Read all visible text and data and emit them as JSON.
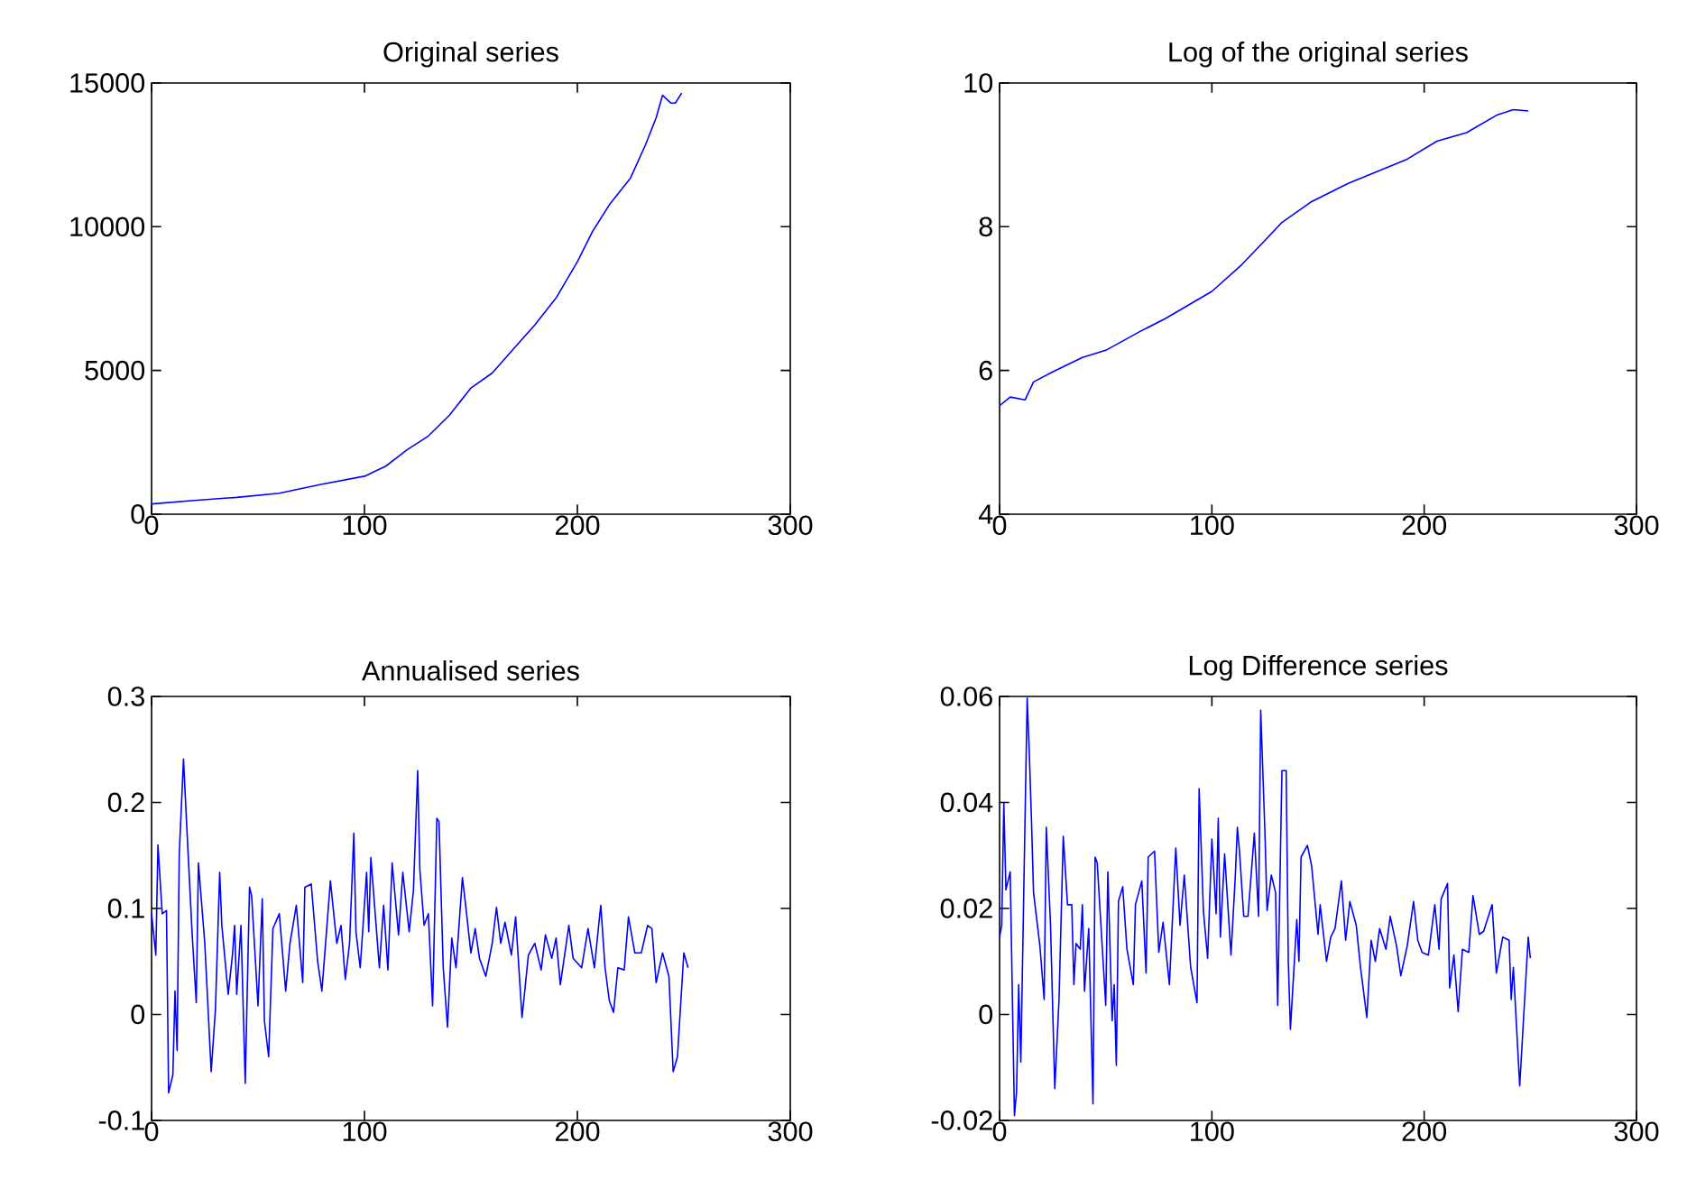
{
  "chart_data": [
    {
      "type": "line",
      "title": "Original series",
      "color": "#0000ff",
      "xlim": [
        0,
        300
      ],
      "xticks": [
        0,
        100,
        200,
        300
      ],
      "ylim": [
        0,
        15000
      ],
      "yticks": [
        0,
        5000,
        10000,
        15000
      ],
      "x": [
        0,
        20,
        40,
        60,
        80,
        100,
        110,
        120,
        130,
        140,
        150,
        160,
        170,
        180,
        190,
        200,
        207,
        215,
        225,
        232,
        237,
        240,
        244,
        246,
        249
      ],
      "values": [
        355,
        480,
        585,
        730,
        1045,
        1320,
        1670,
        2240,
        2720,
        3450,
        4390,
        4910,
        5750,
        6580,
        7520,
        8780,
        9820,
        10760,
        11700,
        12850,
        13790,
        14570,
        14300,
        14300,
        14650
      ]
    },
    {
      "type": "line",
      "title": "Log of the original series",
      "color": "#0000ff",
      "xlim": [
        0,
        300
      ],
      "xticks": [
        0,
        100,
        200,
        300
      ],
      "ylim": [
        4,
        10
      ],
      "yticks": [
        4,
        6,
        8,
        10
      ],
      "x": [
        0,
        5,
        12,
        16,
        25,
        39,
        50,
        66,
        78,
        100,
        114,
        125,
        133,
        147,
        164,
        178,
        192,
        206,
        220,
        234,
        242,
        249
      ],
      "values": [
        5.51,
        5.63,
        5.59,
        5.84,
        5.98,
        6.18,
        6.28,
        6.54,
        6.72,
        7.1,
        7.47,
        7.81,
        8.06,
        8.35,
        8.6,
        8.77,
        8.94,
        9.19,
        9.31,
        9.55,
        9.63,
        9.61
      ]
    },
    {
      "type": "line",
      "title": "Annualised series",
      "color": "#0000ff",
      "xlim": [
        0,
        300
      ],
      "xticks": [
        0,
        100,
        200,
        300
      ],
      "ylim": [
        -0.1,
        0.3
      ],
      "yticks": [
        -0.1,
        0,
        0.1,
        0.2,
        0.3
      ],
      "x": [
        0,
        2,
        3,
        5,
        7,
        8,
        10,
        11,
        12,
        13,
        15,
        16,
        19,
        21,
        22,
        25,
        28,
        30,
        32,
        33,
        36,
        38,
        39,
        40,
        42,
        44,
        46,
        47,
        50,
        52,
        53,
        55,
        57,
        60,
        63,
        65,
        68,
        71,
        72,
        75,
        78,
        80,
        84,
        87,
        89,
        91,
        93,
        95,
        96,
        98,
        101,
        102,
        103,
        107,
        109,
        111,
        113,
        116,
        118,
        121,
        123,
        125,
        126,
        128,
        130,
        132,
        134,
        135,
        137,
        139,
        141,
        143,
        146,
        147,
        150,
        152,
        154,
        157,
        160,
        162,
        164,
        166,
        169,
        171,
        174,
        177,
        180,
        183,
        185,
        188,
        190,
        192,
        196,
        198,
        202,
        205,
        208,
        210,
        211,
        213,
        215,
        217,
        219,
        222,
        224,
        227,
        230,
        233,
        235,
        237,
        240,
        243,
        245,
        247,
        250,
        252
      ],
      "values": [
        0.095,
        0.056,
        0.16,
        0.095,
        0.098,
        -0.074,
        -0.057,
        0.022,
        -0.034,
        0.151,
        0.241,
        0.199,
        0.078,
        0.011,
        0.143,
        0.067,
        -0.054,
        0.005,
        0.134,
        0.084,
        0.019,
        0.056,
        0.084,
        0.019,
        0.084,
        -0.065,
        0.12,
        0.112,
        0.008,
        0.109,
        -0.006,
        -0.04,
        0.081,
        0.095,
        0.022,
        0.067,
        0.103,
        0.03,
        0.12,
        0.123,
        0.05,
        0.022,
        0.126,
        0.067,
        0.084,
        0.033,
        0.067,
        0.171,
        0.078,
        0.044,
        0.134,
        0.078,
        0.148,
        0.044,
        0.103,
        0.042,
        0.143,
        0.075,
        0.134,
        0.078,
        0.117,
        0.23,
        0.137,
        0.084,
        0.095,
        0.008,
        0.185,
        0.182,
        0.044,
        -0.012,
        0.072,
        0.044,
        0.129,
        0.112,
        0.058,
        0.081,
        0.053,
        0.036,
        0.067,
        0.101,
        0.067,
        0.087,
        0.056,
        0.092,
        -0.003,
        0.056,
        0.067,
        0.042,
        0.075,
        0.053,
        0.072,
        0.028,
        0.084,
        0.053,
        0.044,
        0.081,
        0.044,
        0.084,
        0.103,
        0.044,
        0.013,
        0.002,
        0.044,
        0.042,
        0.092,
        0.058,
        0.058,
        0.084,
        0.081,
        0.03,
        0.058,
        0.036,
        -0.054,
        -0.04,
        0.058,
        0.044
      ]
    },
    {
      "type": "line",
      "title": "Log Difference series",
      "color": "#0000ff",
      "xlim": [
        0,
        300
      ],
      "xticks": [
        0,
        100,
        200,
        300
      ],
      "ylim": [
        -0.02,
        0.06
      ],
      "yticks": [
        -0.02,
        0,
        0.02,
        0.04,
        0.06
      ],
      "x": [
        0,
        1,
        2,
        3,
        5,
        7,
        8,
        9,
        10,
        12,
        13,
        14,
        15,
        16,
        19,
        21,
        22,
        24,
        26,
        28,
        30,
        32,
        34,
        35,
        36,
        38,
        39,
        40,
        42,
        44,
        45,
        46,
        47,
        50,
        51,
        53,
        54,
        55,
        56,
        58,
        60,
        63,
        64,
        67,
        69,
        70,
        73,
        75,
        77,
        80,
        83,
        85,
        87,
        90,
        93,
        94,
        96,
        98,
        100,
        102,
        103,
        104,
        106,
        109,
        111,
        112,
        113,
        115,
        117,
        120,
        122,
        123,
        125,
        126,
        128,
        130,
        131,
        133,
        135,
        136,
        137,
        140,
        141,
        142,
        145,
        147,
        150,
        151,
        154,
        156,
        158,
        161,
        163,
        165,
        168,
        170,
        173,
        175,
        177,
        179,
        182,
        184,
        187,
        189,
        192,
        195,
        197,
        199,
        202,
        205,
        207,
        208,
        211,
        212,
        214,
        216,
        218,
        221,
        223,
        226,
        228,
        232,
        234,
        237,
        240,
        241,
        242,
        245,
        249,
        250
      ],
      "values": [
        0.0146,
        0.0168,
        0.0398,
        0.0235,
        0.0269,
        -0.0191,
        -0.0146,
        0.0056,
        -0.009,
        0.037,
        0.0597,
        0.0493,
        0.037,
        0.023,
        0.0129,
        0.0028,
        0.0353,
        0.0168,
        -0.014,
        0.0028,
        0.0336,
        0.0207,
        0.0207,
        0.0056,
        0.0134,
        0.0123,
        0.0207,
        0.0044,
        0.0162,
        -0.0169,
        0.0297,
        0.0286,
        0.0218,
        0.0017,
        0.0269,
        -0.0012,
        0.0056,
        -0.0096,
        0.0213,
        0.0241,
        0.0123,
        0.0056,
        0.0207,
        0.0252,
        0.0078,
        0.0297,
        0.0308,
        0.0117,
        0.0174,
        0.0056,
        0.0314,
        0.0168,
        0.0263,
        0.0089,
        0.0022,
        0.0426,
        0.0196,
        0.0106,
        0.0331,
        0.019,
        0.037,
        0.0146,
        0.0303,
        0.0112,
        0.0258,
        0.0353,
        0.0308,
        0.0185,
        0.0185,
        0.0342,
        0.0185,
        0.0574,
        0.0342,
        0.0196,
        0.0263,
        0.023,
        0.0017,
        0.046,
        0.046,
        0.01,
        -0.0028,
        0.0179,
        0.01,
        0.0297,
        0.0319,
        0.028,
        0.0151,
        0.0207,
        0.01,
        0.0146,
        0.0162,
        0.0252,
        0.014,
        0.0213,
        0.0168,
        0.0089,
        -0.0006,
        0.014,
        0.01,
        0.0162,
        0.0123,
        0.0185,
        0.0129,
        0.0073,
        0.0129,
        0.0213,
        0.014,
        0.0117,
        0.0112,
        0.0207,
        0.0123,
        0.0218,
        0.0247,
        0.005,
        0.0112,
        0.0005,
        0.0123,
        0.0117,
        0.0224,
        0.0151,
        0.0157,
        0.0207,
        0.0078,
        0.0146,
        0.014,
        0.0028,
        0.0089,
        -0.0135,
        0.0146,
        0.0106
      ]
    }
  ]
}
